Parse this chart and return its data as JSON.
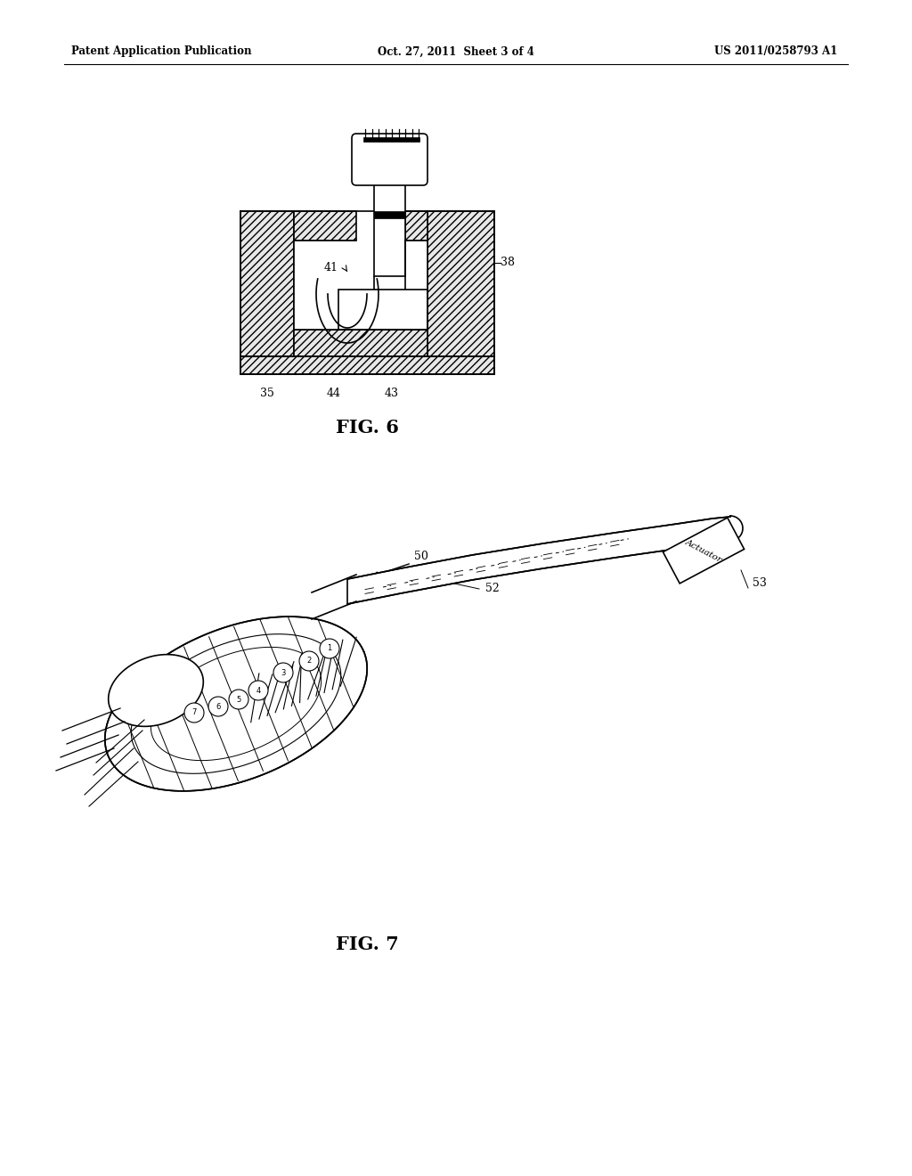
{
  "background_color": "#ffffff",
  "page_width": 10.24,
  "page_height": 13.2,
  "header_text_left": "Patent Application Publication",
  "header_text_mid": "Oct. 27, 2011  Sheet 3 of 4",
  "header_text_right": "US 2011/0258793 A1",
  "fig6_label": "FIG. 6",
  "fig7_label": "FIG. 7"
}
